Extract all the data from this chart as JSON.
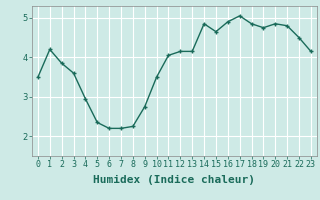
{
  "xlabel": "Humidex (Indice chaleur)",
  "x": [
    0,
    1,
    2,
    3,
    4,
    5,
    6,
    7,
    8,
    9,
    10,
    11,
    12,
    13,
    14,
    15,
    16,
    17,
    18,
    19,
    20,
    21,
    22,
    23
  ],
  "y": [
    3.5,
    4.2,
    3.85,
    3.6,
    2.95,
    2.35,
    2.2,
    2.2,
    2.25,
    2.75,
    3.5,
    4.05,
    4.15,
    4.15,
    4.85,
    4.65,
    4.9,
    5.05,
    4.85,
    4.75,
    4.85,
    4.8,
    4.5,
    4.15
  ],
  "ylim": [
    1.5,
    5.3
  ],
  "xlim": [
    -0.5,
    23.5
  ],
  "yticks": [
    2,
    3,
    4,
    5
  ],
  "xtick_labels": [
    "0",
    "1",
    "2",
    "3",
    "4",
    "5",
    "6",
    "7",
    "8",
    "9",
    "10",
    "11",
    "12",
    "13",
    "14",
    "15",
    "16",
    "17",
    "18",
    "19",
    "20",
    "21",
    "22",
    "23"
  ],
  "line_color": "#1a6b5a",
  "marker": "+",
  "bg_color": "#ceeae6",
  "grid_color": "#ffffff",
  "tick_label_fontsize": 6.0,
  "xlabel_fontsize": 8.0,
  "marker_size": 3.5,
  "linewidth": 1.0
}
